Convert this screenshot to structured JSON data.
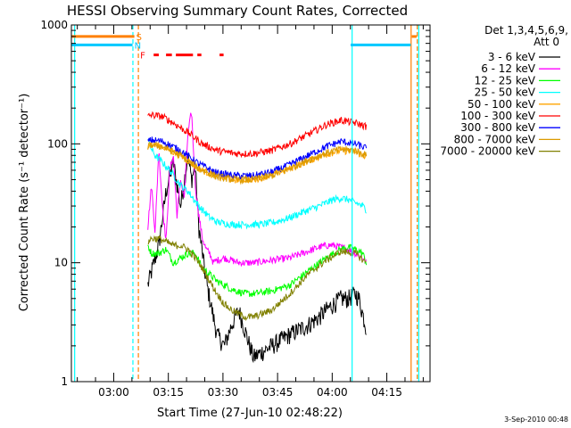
{
  "chart_data": {
    "type": "line",
    "title": "HESSI Observing Summary Count Rates, Corrected",
    "xlabel": "Start Time (27-Jun-10 02:48:22)",
    "ylabel": "Corrected Count Rate (s⁻¹ detector⁻¹)",
    "yscale": "log",
    "ylim": [
      1,
      1000
    ],
    "xlim_minutes_after_start": [
      0,
      98.5
    ],
    "x_tick_labels": [
      "03:00",
      "03:15",
      "03:30",
      "03:45",
      "04:00",
      "04:15"
    ],
    "x_tick_minutes_after_start": [
      11.63,
      26.63,
      41.63,
      56.63,
      71.63,
      86.63
    ],
    "y_tick_labels": [
      "1",
      "10",
      "100",
      "1000"
    ],
    "y_tick_values": [
      1,
      10,
      100,
      1000
    ],
    "grid": false,
    "legend_title": "Det 1,3,4,5,6,9,",
    "legend_subtitle": "Att 0",
    "legend_position": "top-right",
    "series": [
      {
        "name": "3 - 6 keV",
        "color": "#000000",
        "x": [
          21,
          24,
          26,
          28,
          30,
          32,
          33,
          34,
          35,
          36,
          37,
          38,
          39,
          40,
          42,
          44,
          46,
          48,
          50,
          55,
          60,
          65,
          68,
          70,
          72,
          74,
          76,
          78,
          79,
          81
        ],
        "y": [
          6.5,
          14,
          40,
          70,
          30,
          80,
          50,
          65,
          20,
          12,
          7,
          5,
          3.5,
          2.5,
          2,
          3,
          4,
          2.5,
          1.6,
          2,
          2.5,
          3,
          3.5,
          4,
          4.5,
          5,
          5,
          5.5,
          5,
          2.8
        ]
      },
      {
        "name": "6 - 12 keV",
        "color": "#ff00ff",
        "x": [
          21,
          22,
          23,
          24,
          25,
          26,
          27,
          28,
          29,
          30,
          31,
          32,
          33,
          34,
          35,
          36,
          37,
          38,
          39,
          40,
          42,
          44,
          46,
          48,
          50,
          55,
          60,
          65,
          68,
          70,
          72,
          74,
          76,
          78,
          80,
          81
        ],
        "y": [
          20,
          45,
          18,
          90,
          30,
          15,
          60,
          80,
          25,
          50,
          35,
          120,
          190,
          45,
          25,
          16,
          13,
          12,
          10,
          10.5,
          11,
          10.5,
          10,
          10,
          10,
          10.5,
          11,
          12.5,
          13.5,
          14,
          14,
          13.5,
          13,
          12,
          11,
          10
        ]
      },
      {
        "name": "12 - 25 keV",
        "color": "#00ff00",
        "x": [
          21,
          22,
          24,
          26,
          28,
          30,
          32,
          34,
          36,
          38,
          40,
          42,
          44,
          46,
          48,
          50,
          55,
          60,
          65,
          70,
          74,
          76,
          78,
          80,
          81
        ],
        "y": [
          14,
          12,
          12,
          13,
          10,
          11,
          12,
          12,
          9,
          8,
          7,
          6.5,
          6,
          5.7,
          5.5,
          5.5,
          5.8,
          6.5,
          8.5,
          11,
          13,
          13.5,
          13,
          12,
          10
        ]
      },
      {
        "name": "25 - 50 keV",
        "color": "#00ffff",
        "x": [
          21,
          22,
          23,
          25,
          27,
          30,
          32,
          35,
          38,
          40,
          44,
          48,
          52,
          56,
          60,
          64,
          68,
          72,
          74,
          76,
          78,
          80,
          81
        ],
        "y": [
          110,
          90,
          80,
          70,
          60,
          45,
          40,
          30,
          24,
          22,
          21,
          21,
          21,
          22,
          24,
          27,
          30,
          34,
          35,
          34,
          32,
          30,
          28
        ]
      },
      {
        "name": "50 - 100 keV",
        "color": "#ffa500",
        "x": [
          21,
          22,
          25,
          30,
          35,
          40,
          45,
          50,
          55,
          60,
          65,
          70,
          74,
          78,
          81
        ],
        "y": [
          95,
          100,
          95,
          80,
          62,
          53,
          50,
          50,
          55,
          62,
          72,
          82,
          88,
          86,
          78
        ]
      },
      {
        "name": "100 - 300 keV",
        "color": "#ff0000",
        "x": [
          21,
          22,
          25,
          28,
          32,
          36,
          40,
          45,
          50,
          55,
          60,
          65,
          70,
          74,
          78,
          81
        ],
        "y": [
          170,
          175,
          170,
          150,
          125,
          100,
          88,
          83,
          83,
          88,
          100,
          120,
          145,
          158,
          150,
          140
        ]
      },
      {
        "name": "300 - 800 keV",
        "color": "#0000ff",
        "x": [
          21,
          22,
          25,
          30,
          35,
          40,
          45,
          50,
          55,
          60,
          65,
          70,
          74,
          78,
          81
        ],
        "y": [
          105,
          108,
          105,
          88,
          68,
          57,
          54,
          54,
          58,
          67,
          80,
          95,
          105,
          100,
          92
        ]
      },
      {
        "name": "800 - 7000 keV",
        "color": "#dc9b00",
        "x": [
          21,
          22,
          25,
          30,
          35,
          40,
          45,
          50,
          55,
          60,
          65,
          70,
          74,
          78,
          81
        ],
        "y": [
          95,
          98,
          95,
          80,
          62,
          53,
          50,
          50,
          54,
          62,
          73,
          84,
          90,
          88,
          80
        ]
      },
      {
        "name": "7000 - 20000 keV",
        "color": "#808000",
        "x": [
          21,
          22,
          24,
          26,
          28,
          30,
          32,
          34,
          36,
          38,
          40,
          42,
          44,
          46,
          48,
          50,
          55,
          60,
          65,
          70,
          74,
          78,
          81
        ],
        "y": [
          15,
          16,
          16,
          15,
          14,
          14,
          13,
          11,
          9,
          7,
          5.5,
          4.5,
          4,
          3.7,
          3.5,
          3.5,
          4,
          5.5,
          8,
          10.5,
          12.5,
          12,
          10
        ]
      }
    ],
    "flag_lines": [
      {
        "label": "S",
        "color": "#ff7f00",
        "x": 17.3,
        "y": 800,
        "segments": [
          [
            0,
            17.3
          ],
          [
            93.5,
            94.8
          ]
        ]
      },
      {
        "label": "N",
        "color": "#00c8ff",
        "x": 16.8,
        "y": 680,
        "segments": [
          [
            0,
            16.8
          ],
          [
            76.7,
            93.2
          ]
        ]
      },
      {
        "label": "F",
        "color": "#ff0000",
        "x": 18.4,
        "y": 560,
        "segments": [
          [
            22.6,
            24
          ],
          [
            26,
            27.6
          ],
          [
            28.7,
            33.4
          ],
          [
            34.6,
            35.7
          ],
          [
            40.7,
            41.8
          ]
        ]
      }
    ],
    "vertical_lines": [
      {
        "x": 0.9,
        "color": "#00ffff",
        "style": "solid"
      },
      {
        "x": 16.9,
        "color": "#00ffff",
        "style": "dashed"
      },
      {
        "x": 18.4,
        "color": "#ff7f00",
        "style": "dashed"
      },
      {
        "x": 77.1,
        "color": "#00ffff",
        "style": "solid"
      },
      {
        "x": 93.3,
        "color": "#ff7f00",
        "style": "solid"
      },
      {
        "x": 95.0,
        "color": "#ff7f00",
        "style": "dashed"
      },
      {
        "x": 95.4,
        "color": "#00ffff",
        "style": "solid"
      }
    ],
    "footer_date": "3-Sep-2010 00:48"
  }
}
